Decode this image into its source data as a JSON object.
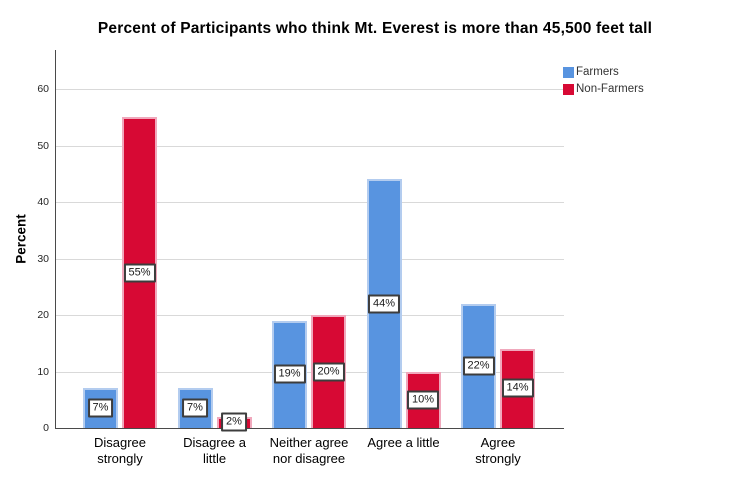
{
  "chart_data": {
    "type": "bar",
    "title": "Percent of Participants who think Mt. Everest is more than 45,500 feet tall",
    "ylabel": "Percent",
    "xlabel": "",
    "categories": [
      "Disagree\nstrongly",
      "Disagree a\nlittle",
      "Neither agree\nnor disagree",
      "Agree a little",
      "Agree\nstrongly"
    ],
    "series": [
      {
        "name": "Farmers",
        "color": "#5894E0",
        "border_color": "#B3CCEF",
        "values": [
          7,
          7,
          19,
          44,
          22
        ],
        "labels": [
          "7%",
          "7%",
          "19%",
          "44%",
          "22%"
        ]
      },
      {
        "name": "Non-Farmers",
        "color": "#D70934",
        "border_color": "#F0A8BC",
        "values": [
          55,
          2,
          20,
          10,
          14
        ],
        "labels": [
          "55%",
          "2%",
          "20%",
          "10%",
          "14%"
        ]
      }
    ],
    "ylim": [
      0,
      60
    ],
    "yticks": [
      0,
      10,
      20,
      30,
      40,
      50,
      60
    ],
    "grid": true,
    "legend_position": "top-right",
    "axis_color": "#4a4a4a",
    "grid_color": "#d9d9d9"
  }
}
